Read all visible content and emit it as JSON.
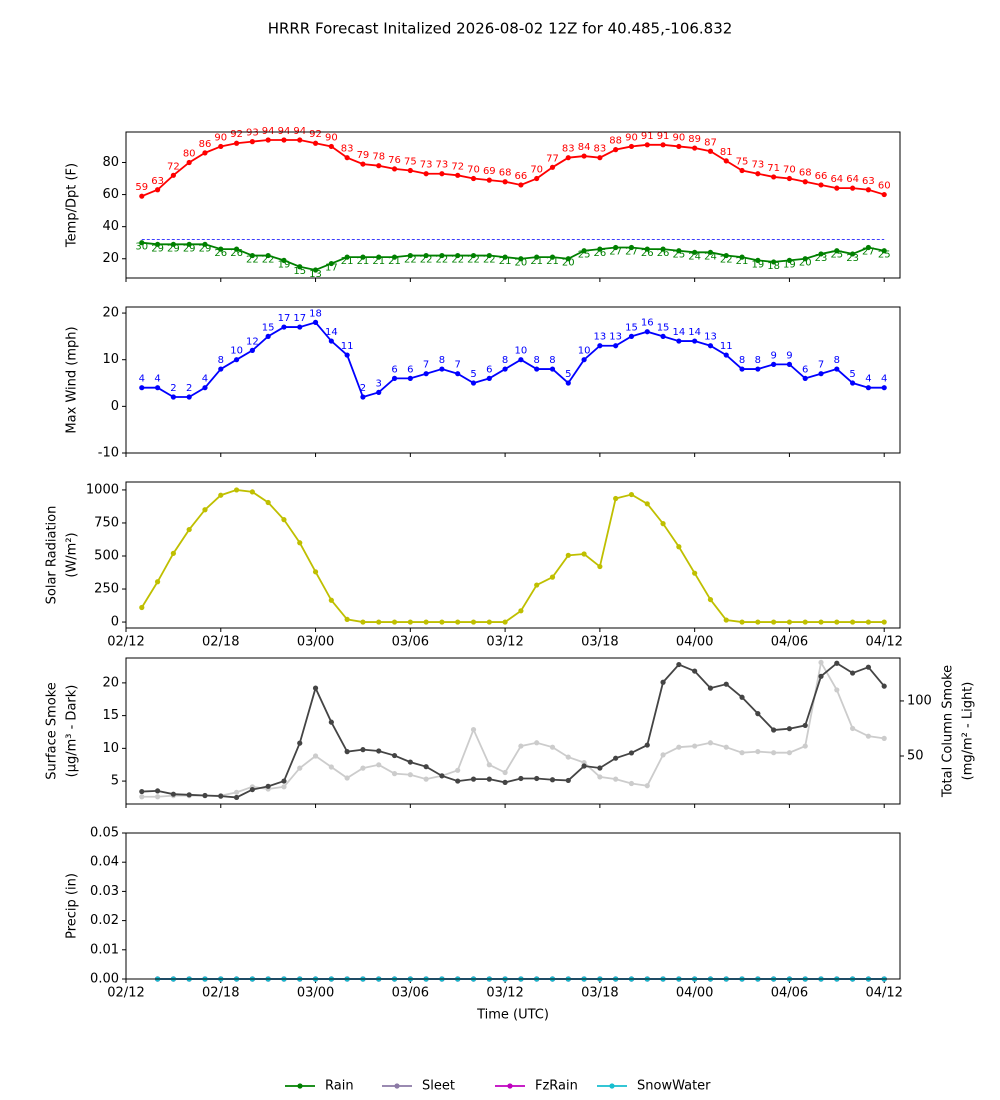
{
  "title": "HRRR Forecast Initalized 2026-08-02 12Z for 40.485,-106.832",
  "chart_data": [
    {
      "type": "line",
      "ylabel": [
        "Temp/Dpt (F)"
      ],
      "x": [
        1,
        2,
        3,
        4,
        5,
        6,
        7,
        8,
        9,
        10,
        11,
        12,
        13,
        14,
        15,
        16,
        17,
        18,
        19,
        20,
        21,
        22,
        23,
        24,
        25,
        26,
        27,
        28,
        29,
        30,
        31,
        32,
        33,
        34,
        35,
        36,
        37,
        38,
        39,
        40,
        41,
        42,
        43,
        44,
        45,
        46,
        47,
        48
      ],
      "xlim": [
        0,
        49
      ],
      "xticks": [
        0,
        6,
        12,
        18,
        24,
        30,
        36,
        42,
        48
      ],
      "ylim": [
        8,
        99
      ],
      "yticks": [
        20,
        40,
        60,
        80
      ],
      "hline": 32,
      "hline_color": "#0000ff",
      "series": [
        {
          "color": "#ff0000",
          "labels": true,
          "label_pos": "above",
          "values": [
            59,
            63,
            72,
            80,
            86,
            90,
            92,
            93,
            94,
            94,
            94,
            92,
            90,
            83,
            79,
            78,
            76,
            75,
            73,
            73,
            72,
            70,
            69,
            68,
            66,
            70,
            77,
            83,
            84,
            83,
            88,
            90,
            91,
            91,
            90,
            89,
            87,
            81,
            75,
            73,
            71,
            70,
            68,
            66,
            64,
            64,
            63,
            60
          ]
        },
        {
          "color": "#008000",
          "labels": true,
          "label_pos": "below",
          "values": [
            30,
            29,
            29,
            29,
            29,
            26,
            26,
            22,
            22,
            19,
            15,
            13,
            17,
            21,
            21,
            21,
            21,
            22,
            22,
            22,
            22,
            22,
            22,
            21,
            20,
            21,
            21,
            20,
            25,
            26,
            27,
            27,
            26,
            26,
            25,
            24,
            24,
            22,
            21,
            19,
            18,
            19,
            20,
            23,
            25,
            23,
            27,
            25
          ]
        }
      ]
    },
    {
      "type": "line",
      "ylabel": [
        "Max Wind (mph)"
      ],
      "x": [
        1,
        2,
        3,
        4,
        5,
        6,
        7,
        8,
        9,
        10,
        11,
        12,
        13,
        14,
        15,
        16,
        17,
        18,
        19,
        20,
        21,
        22,
        23,
        24,
        25,
        26,
        27,
        28,
        29,
        30,
        31,
        32,
        33,
        34,
        35,
        36,
        37,
        38,
        39,
        40,
        41,
        42,
        43,
        44,
        45,
        46,
        47,
        48
      ],
      "xlim": [
        0,
        49
      ],
      "xticks": [
        0,
        6,
        12,
        18,
        24,
        30,
        36,
        42,
        48
      ],
      "ylim": [
        -10,
        21.3
      ],
      "yticks": [
        -10,
        0,
        10,
        20
      ],
      "series": [
        {
          "color": "#0000ff",
          "labels": true,
          "label_pos": "above",
          "values": [
            4,
            4,
            2,
            2,
            4,
            8,
            10,
            12,
            15,
            17,
            17,
            18,
            14,
            11,
            2,
            3,
            6,
            6,
            7,
            8,
            7,
            5,
            6,
            8,
            10,
            8,
            8,
            5,
            10,
            13,
            13,
            15,
            16,
            15,
            14,
            14,
            13,
            11,
            8,
            8,
            9,
            9,
            6,
            7,
            8,
            5,
            4,
            4
          ]
        }
      ]
    },
    {
      "type": "line",
      "ylabel": [
        "Solar Radiation",
        "(W/m²)"
      ],
      "x": [
        1,
        2,
        3,
        4,
        5,
        6,
        7,
        8,
        9,
        10,
        11,
        12,
        13,
        14,
        15,
        16,
        17,
        18,
        19,
        20,
        21,
        22,
        23,
        24,
        25,
        26,
        27,
        28,
        29,
        30,
        31,
        32,
        33,
        34,
        35,
        36,
        37,
        38,
        39,
        40,
        41,
        42,
        43,
        44,
        45,
        46,
        47,
        48
      ],
      "xlim": [
        0,
        49
      ],
      "xticks": [
        {
          "value": 0,
          "label": "02/12"
        },
        {
          "value": 6,
          "label": "02/18"
        },
        {
          "value": 12,
          "label": "03/00"
        },
        {
          "value": 18,
          "label": "03/06"
        },
        {
          "value": 24,
          "label": "03/12"
        },
        {
          "value": 30,
          "label": "03/18"
        },
        {
          "value": 36,
          "label": "04/00"
        },
        {
          "value": 42,
          "label": "04/06"
        },
        {
          "value": 48,
          "label": "04/12"
        }
      ],
      "ylim": [
        -45,
        1060
      ],
      "yticks": [
        0,
        250,
        500,
        750,
        1000
      ],
      "series": [
        {
          "color": "#bfbf00",
          "values": [
            110,
            305,
            520,
            700,
            850,
            960,
            1000,
            985,
            905,
            775,
            600,
            380,
            165,
            20,
            0,
            0,
            0,
            0,
            0,
            0,
            0,
            0,
            0,
            0,
            85,
            280,
            340,
            505,
            515,
            420,
            935,
            965,
            895,
            745,
            570,
            370,
            170,
            15,
            0,
            0,
            0,
            0,
            0,
            0,
            0,
            0,
            0,
            0
          ]
        }
      ]
    },
    {
      "type": "line",
      "ylabel": [
        "Surface Smoke",
        "(μg/m³ - Dark)"
      ],
      "y2label": [
        "Total Column Smoke",
        "(mg/m² - Light)"
      ],
      "x": [
        1,
        2,
        3,
        4,
        5,
        6,
        7,
        8,
        9,
        10,
        11,
        12,
        13,
        14,
        15,
        16,
        17,
        18,
        19,
        20,
        21,
        22,
        23,
        24,
        25,
        26,
        27,
        28,
        29,
        30,
        31,
        32,
        33,
        34,
        35,
        36,
        37,
        38,
        39,
        40,
        41,
        42,
        43,
        44,
        45,
        46,
        47,
        48
      ],
      "xlim": [
        0,
        49
      ],
      "xticks": [
        0,
        6,
        12,
        18,
        24,
        30,
        36,
        42,
        48
      ],
      "ylim": [
        1.5,
        23.8
      ],
      "yticks": [
        5,
        10,
        15,
        20
      ],
      "y2lim": [
        6.4,
        139
      ],
      "y2ticks": [
        50,
        100
      ],
      "series": [
        {
          "color": "#cccccc",
          "axis": "y2",
          "values": [
            13,
            13,
            14,
            14,
            14,
            14,
            17,
            22,
            20,
            22,
            39,
            50,
            40,
            30,
            39,
            42,
            34,
            33,
            29,
            32,
            37,
            74,
            42,
            35,
            59,
            62,
            58,
            49,
            44,
            31,
            29,
            25,
            23,
            51,
            58,
            59,
            62,
            58,
            53,
            54,
            53,
            53,
            59,
            135,
            110,
            75,
            68,
            66
          ]
        },
        {
          "color": "#444444",
          "values": [
            3.4,
            3.5,
            3.0,
            2.9,
            2.8,
            2.7,
            2.5,
            3.7,
            4.2,
            5.0,
            10.8,
            19.2,
            14.0,
            9.5,
            9.8,
            9.6,
            8.9,
            7.9,
            7.2,
            5.8,
            5.0,
            5.3,
            5.3,
            4.8,
            5.4,
            5.4,
            5.2,
            5.1,
            7.3,
            7.0,
            8.5,
            9.3,
            10.5,
            20.1,
            22.8,
            21.8,
            19.2,
            19.8,
            17.8,
            15.3,
            12.8,
            13.0,
            13.5,
            21.0,
            23.0,
            21.5,
            22.4,
            19.5
          ]
        }
      ]
    },
    {
      "type": "line",
      "ylabel": [
        "Precip (in)"
      ],
      "xlabel": "Time (UTC)",
      "legend": "below",
      "x": [
        2,
        3,
        4,
        5,
        6,
        7,
        8,
        9,
        10,
        11,
        12,
        13,
        14,
        15,
        16,
        17,
        18,
        19,
        20,
        21,
        22,
        23,
        24,
        25,
        26,
        27,
        28,
        29,
        30,
        31,
        32,
        33,
        34,
        35,
        36,
        37,
        38,
        39,
        40,
        41,
        42,
        43,
        44,
        45,
        46,
        47,
        48
      ],
      "xlim": [
        0,
        49
      ],
      "xticks": [
        {
          "value": 0,
          "label": "02/12"
        },
        {
          "value": 6,
          "label": "02/18"
        },
        {
          "value": 12,
          "label": "03/00"
        },
        {
          "value": 18,
          "label": "03/06"
        },
        {
          "value": 24,
          "label": "03/12"
        },
        {
          "value": 30,
          "label": "03/18"
        },
        {
          "value": 36,
          "label": "04/00"
        },
        {
          "value": 42,
          "label": "04/06"
        },
        {
          "value": 48,
          "label": "04/12"
        }
      ],
      "ylim": [
        0,
        0.05
      ],
      "yticks": [
        {
          "value": 0,
          "label": "0.00"
        },
        {
          "value": 0.01,
          "label": "0.01"
        },
        {
          "value": 0.02,
          "label": "0.02"
        },
        {
          "value": 0.03,
          "label": "0.03"
        },
        {
          "value": 0.04,
          "label": "0.04"
        },
        {
          "value": 0.05,
          "label": "0.05"
        }
      ],
      "series": [
        {
          "name": "Rain",
          "color": "#008000",
          "values": [
            0,
            0,
            0,
            0,
            0,
            0,
            0,
            0,
            0,
            0,
            0,
            0,
            0,
            0,
            0,
            0,
            0,
            0,
            0,
            0,
            0,
            0,
            0,
            0,
            0,
            0,
            0,
            0,
            0,
            0,
            0,
            0,
            0,
            0,
            0,
            0,
            0,
            0,
            0,
            0,
            0,
            0,
            0,
            0,
            0,
            0,
            0
          ]
        },
        {
          "name": "Sleet",
          "color": "#8c7aa6",
          "values": [
            0,
            0,
            0,
            0,
            0,
            0,
            0,
            0,
            0,
            0,
            0,
            0,
            0,
            0,
            0,
            0,
            0,
            0,
            0,
            0,
            0,
            0,
            0,
            0,
            0,
            0,
            0,
            0,
            0,
            0,
            0,
            0,
            0,
            0,
            0,
            0,
            0,
            0,
            0,
            0,
            0,
            0,
            0,
            0,
            0,
            0,
            0
          ]
        },
        {
          "name": "FzRain",
          "color": "#bf00bf",
          "values": [
            0,
            0,
            0,
            0,
            0,
            0,
            0,
            0,
            0,
            0,
            0,
            0,
            0,
            0,
            0,
            0,
            0,
            0,
            0,
            0,
            0,
            0,
            0,
            0,
            0,
            0,
            0,
            0,
            0,
            0,
            0,
            0,
            0,
            0,
            0,
            0,
            0,
            0,
            0,
            0,
            0,
            0,
            0,
            0,
            0,
            0,
            0
          ]
        },
        {
          "name": "SnowWater",
          "color": "#17becf",
          "values": [
            0,
            0,
            0,
            0,
            0,
            0,
            0,
            0,
            0,
            0,
            0,
            0,
            0,
            0,
            0,
            0,
            0,
            0,
            0,
            0,
            0,
            0,
            0,
            0,
            0,
            0,
            0,
            0,
            0,
            0,
            0,
            0,
            0,
            0,
            0,
            0,
            0,
            0,
            0,
            0,
            0,
            0,
            0,
            0,
            0,
            0,
            0
          ]
        }
      ]
    }
  ]
}
